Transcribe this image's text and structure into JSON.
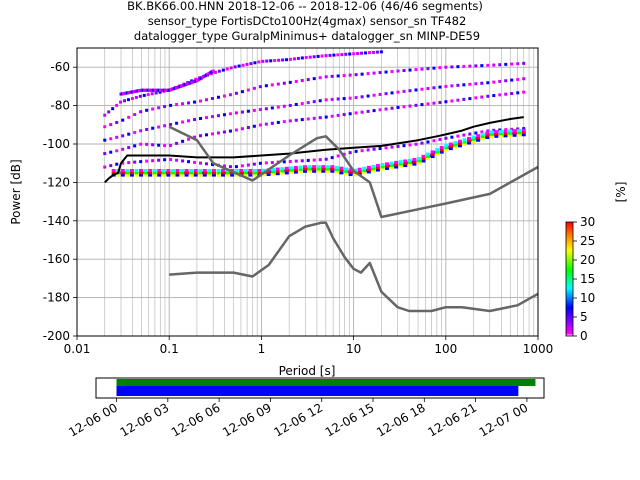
{
  "header": {
    "line1": "BK.BK66.00.HNN   2018-12-06 -- 2018-12-06  (46/46 segments)",
    "line2": "sensor_type FortisDCto100Hz(4gmax) sensor_sn TF482",
    "line3": "datalogger_type GuralpMinimus+ datalogger_sn MINP-DE59"
  },
  "chart_data": [
    {
      "type": "heatmap",
      "title": "",
      "xlabel": "Period [s]",
      "ylabel": "Power [dB]",
      "xscale": "log",
      "xlim": [
        0.01,
        1000
      ],
      "ylim": [
        -200,
        -50
      ],
      "x_ticks": [
        "0.01",
        "0.1",
        "1",
        "10",
        "100",
        "1000"
      ],
      "y_ticks": [
        "-200",
        "-180",
        "-160",
        "-140",
        "-120",
        "-100",
        "-80",
        "-60"
      ],
      "grid": true,
      "colorbar": {
        "label": "[%]",
        "range": [
          0,
          30
        ],
        "ticks": [
          "0",
          "5",
          "10",
          "15",
          "20",
          "25",
          "30"
        ],
        "colors": [
          "#ffffff",
          "#ff00ff",
          "#0000ff",
          "#00ffff",
          "#00ff00",
          "#ffff00",
          "#ff8000",
          "#ff0000"
        ]
      },
      "series": [
        {
          "name": "",
          "color": "#000000",
          "x": [
            0.02,
            0.022,
            0.025,
            0.028,
            0.03,
            0.035,
            0.05,
            0.1,
            0.2,
            0.5,
            1,
            2,
            5,
            10,
            20,
            50,
            80,
            100,
            150,
            200,
            300,
            500,
            700
          ],
          "y": [
            -120,
            -118,
            -116,
            -115,
            -110,
            -106,
            -106,
            -106,
            -107,
            -107,
            -106,
            -105,
            -103,
            -102,
            -101,
            -98,
            -96,
            -95,
            -93,
            -91,
            -89,
            -87,
            -86
          ]
        },
        {
          "name": "",
          "color": "#666666",
          "x": [
            0.1,
            0.2,
            0.3,
            0.8,
            2,
            4,
            5,
            7,
            10,
            15,
            20,
            50,
            100,
            300,
            1000
          ],
          "y": [
            -91,
            -98,
            -110,
            -119,
            -106,
            -97,
            -96,
            -103,
            -114,
            -120,
            -138,
            -134,
            -131,
            -126,
            -112
          ]
        },
        {
          "name": "",
          "color": "#666666",
          "x": [
            0.1,
            0.2,
            0.5,
            0.8,
            1.2,
            2,
            3,
            4.5,
            5,
            6,
            8,
            10,
            12,
            15,
            20,
            30,
            40,
            70,
            100,
            150,
            300,
            600,
            1000
          ],
          "y": [
            -168,
            -167,
            -167,
            -169,
            -163,
            -148,
            -143,
            -141,
            -141,
            -149,
            -159,
            -165,
            -167,
            -162,
            -177,
            -185,
            -187,
            -187,
            -185,
            -185,
            -187,
            -184,
            -178
          ]
        }
      ],
      "modes": [
        {
          "x": [
            0.025,
            0.03,
            0.1,
            1,
            3,
            6,
            10,
            20,
            50,
            100,
            300,
            700
          ],
          "y": [
            -115,
            -115,
            -115,
            -115,
            -113,
            -113,
            -115,
            -112,
            -109,
            -102,
            -95,
            -94
          ]
        },
        {
          "x": [
            0.02,
            0.03,
            0.1,
            0.5,
            1,
            5,
            10,
            50,
            100,
            300,
            700
          ],
          "y": [
            -112,
            -110,
            -108,
            -112,
            -110,
            -108,
            -104,
            -100,
            -97,
            -93,
            -92
          ]
        },
        {
          "x": [
            0.02,
            0.03,
            0.05,
            0.1,
            0.2,
            0.5,
            1,
            2,
            5,
            10,
            30,
            100,
            300,
            700
          ],
          "y": [
            -105,
            -103,
            -100,
            -101,
            -96,
            -93,
            -90,
            -88,
            -86,
            -84,
            -81,
            -78,
            -75,
            -73
          ]
        },
        {
          "x": [
            0.02,
            0.03,
            0.05,
            0.1,
            0.2,
            0.5,
            1,
            2,
            5,
            10,
            30,
            100,
            300,
            700
          ],
          "y": [
            -98,
            -96,
            -93,
            -90,
            -87,
            -84,
            -82,
            -80,
            -77,
            -76,
            -73,
            -70,
            -68,
            -66
          ]
        },
        {
          "x": [
            0.02,
            0.03,
            0.05,
            0.1,
            0.2,
            0.5,
            1,
            2,
            5,
            10,
            30,
            100,
            300,
            700
          ],
          "y": [
            -91,
            -88,
            -83,
            -80,
            -78,
            -74,
            -70,
            -68,
            -65,
            -64,
            -62,
            -60,
            -59,
            -58
          ]
        },
        {
          "x": [
            0.02,
            0.03,
            0.05,
            0.1,
            0.2,
            0.3,
            0.5,
            1,
            2,
            3,
            5,
            10,
            20
          ],
          "y": [
            -85,
            -78,
            -75,
            -72,
            -66,
            -63,
            -60,
            -57,
            -56,
            -55,
            -54,
            -53,
            -52
          ]
        },
        {
          "x": [
            0.03,
            0.05,
            0.1,
            0.2,
            0.3
          ],
          "y": [
            -74,
            -72,
            -72,
            -67,
            -62
          ]
        }
      ]
    },
    {
      "type": "timeline",
      "x_ticks": [
        "12-06 00",
        "12-06 03",
        "12-06 06",
        "12-06 09",
        "12-06 12",
        "12-06 15",
        "12-06 18",
        "12-06 21",
        "12-07 00"
      ],
      "x_range_hours": [
        -1.2,
        25
      ],
      "bars": [
        {
          "color": "#008000",
          "start_hour": 0,
          "end_hour": 24.5
        },
        {
          "color": "#0000ff",
          "start_hour": 0,
          "end_hour": 23.5
        }
      ]
    }
  ]
}
